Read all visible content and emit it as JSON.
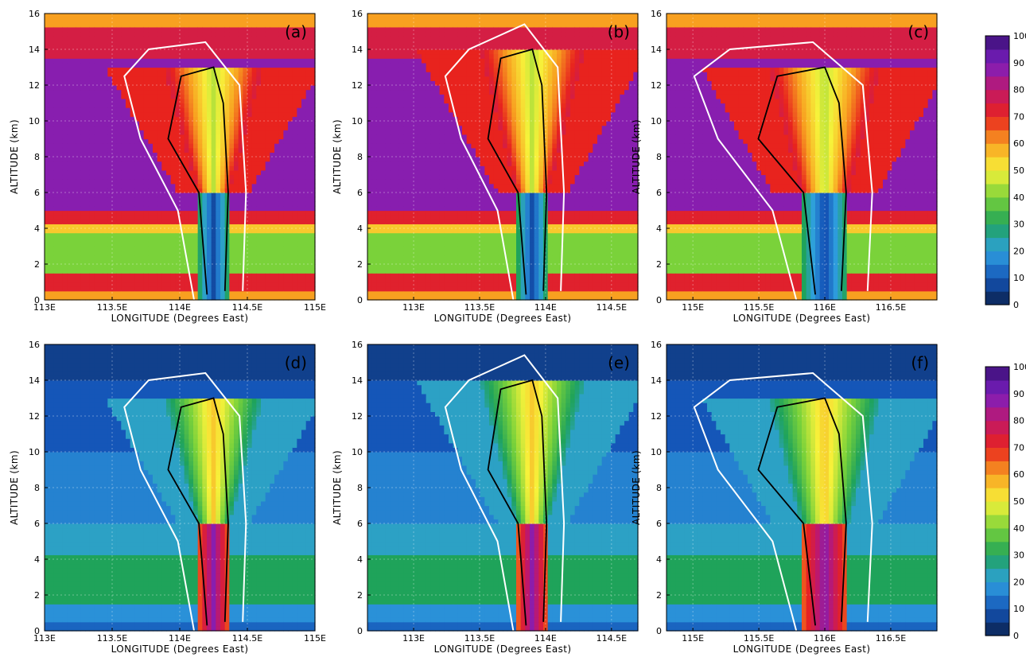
{
  "figure": {
    "panels": [
      {
        "label": "(a)",
        "colormap": "rainbow",
        "xticks": [
          113.0,
          113.5,
          114.0,
          114.5,
          115.0
        ],
        "xtick_labels": [
          "113E",
          "113.5E",
          "114E",
          "114.5E",
          "115E"
        ],
        "xlim": [
          113.0,
          115.0
        ]
      },
      {
        "label": "(b)",
        "colormap": "rainbow",
        "xticks": [
          113.0,
          113.5,
          114.0,
          114.5
        ],
        "xtick_labels": [
          "113E",
          "113.5E",
          "114E",
          "114.5E"
        ],
        "xlim": [
          112.65,
          114.7
        ]
      },
      {
        "label": "(c)",
        "colormap": "rainbow",
        "xticks": [
          115.0,
          115.5,
          116.0,
          116.5
        ],
        "xtick_labels": [
          "115E",
          "115.5E",
          "116E",
          "116.5E"
        ],
        "xlim": [
          114.8,
          116.85
        ]
      },
      {
        "label": "(d)",
        "colormap": "blues",
        "xticks": [
          113.0,
          113.5,
          114.0,
          114.5,
          115.0
        ],
        "xtick_labels": [
          "113E",
          "113.5E",
          "114E",
          "114.5E",
          "115E"
        ],
        "xlim": [
          113.0,
          115.0
        ]
      },
      {
        "label": "(e)",
        "colormap": "blues",
        "xticks": [
          113.0,
          113.5,
          114.0,
          114.5
        ],
        "xtick_labels": [
          "113E",
          "113.5E",
          "114E",
          "114.5E"
        ],
        "xlim": [
          112.65,
          114.7
        ]
      },
      {
        "label": "(f)",
        "colormap": "blues",
        "xticks": [
          115.0,
          115.5,
          116.0,
          116.5
        ],
        "xtick_labels": [
          "115E",
          "115.5E",
          "116E",
          "116.5E"
        ],
        "xlim": [
          114.8,
          116.85
        ]
      }
    ],
    "yticks": [
      0,
      2,
      4,
      6,
      8,
      10,
      12,
      14,
      16
    ],
    "ytick_labels": [
      "0",
      "2",
      "4",
      "6",
      "8",
      "10",
      "12",
      "14",
      "16"
    ],
    "xlabel": "LONGITUDE (Degrees East)",
    "ylabel": "ALTITUDE (km)",
    "colorbars": [
      {
        "colormap": "rainbow",
        "ticks": [
          "0",
          "10",
          "20",
          "30",
          "40",
          "50",
          "60",
          "70",
          "80",
          "90",
          "100"
        ]
      },
      {
        "colormap": "blues",
        "ticks": [
          "0",
          "10",
          "20",
          "30",
          "40",
          "50",
          "60",
          "70",
          "80",
          "90",
          "100"
        ]
      }
    ]
  },
  "chart_data": {
    "type": "heatmap",
    "panel_labels": [
      "(a)",
      "(b)",
      "(c)",
      "(d)",
      "(e)",
      "(f)"
    ],
    "xlabel": "LONGITUDE (Degrees East)",
    "ylabel": "ALTITUDE (km)",
    "ylim": [
      0,
      16
    ],
    "value_range": [
      0,
      100
    ],
    "colorbar_ticks": [
      0,
      10,
      20,
      30,
      40,
      50,
      60,
      70,
      80,
      90,
      100
    ],
    "panels": [
      {
        "label": "(a)",
        "xlim": [
          113.0,
          115.0
        ],
        "core_center": 114.25,
        "core_top_km": 13.0,
        "core_half_width": 0.12
      },
      {
        "label": "(b)",
        "xlim": [
          112.65,
          114.7
        ],
        "core_center": 113.9,
        "core_top_km": 14.0,
        "core_half_width": 0.12
      },
      {
        "label": "(c)",
        "xlim": [
          114.8,
          116.85
        ],
        "core_center": 116.0,
        "core_top_km": 13.0,
        "core_half_width": 0.18
      },
      {
        "label": "(d)",
        "xlim": [
          113.0,
          115.0
        ],
        "core_center": 114.25,
        "core_top_km": 13.0,
        "core_half_width": 0.12
      },
      {
        "label": "(e)",
        "xlim": [
          112.65,
          114.7
        ],
        "core_center": 113.9,
        "core_top_km": 14.0,
        "core_half_width": 0.12
      },
      {
        "label": "(f)",
        "xlim": [
          114.8,
          116.85
        ],
        "core_center": 116.0,
        "core_top_km": 13.0,
        "core_half_width": 0.18
      }
    ]
  }
}
